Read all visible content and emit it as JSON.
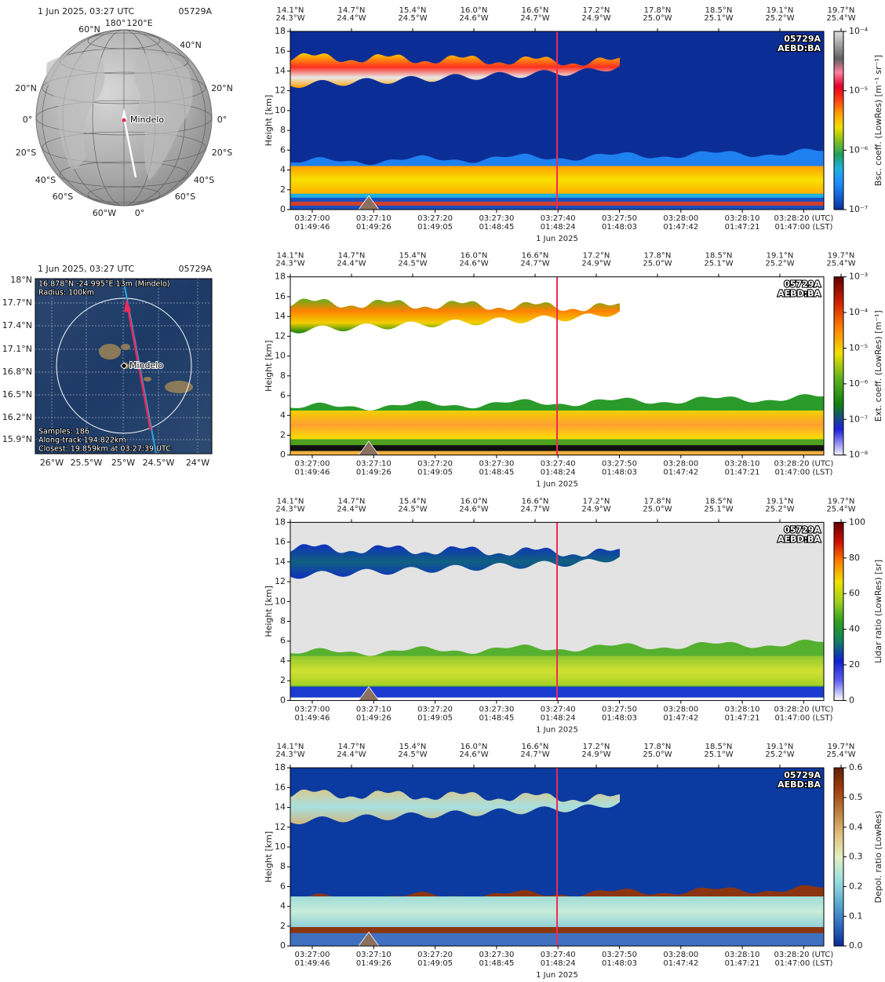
{
  "globe": {
    "time": "1 Jun 2025, 03:27 UTC",
    "id": "05729A",
    "site": "Mindelo",
    "grid_labels": [
      "180°",
      "120°E",
      "60°N",
      "40°N",
      "20°N",
      "20°N",
      "0°",
      "0°",
      "20°S",
      "20°S",
      "40°S",
      "40°S",
      "60°S",
      "60°S",
      "60°W",
      "0°"
    ]
  },
  "map": {
    "time": "1 Jun 2025, 03:27 UTC",
    "id": "05729A",
    "site": "Mindelo",
    "info_top": [
      "16.878°N -24.995°E 13m (Mindelo)",
      "Radius: 100km"
    ],
    "info_bottom": [
      "Samples: 186",
      "Along-track 194.822km",
      "Closest: 19.859km at 03:27:39 UTC"
    ],
    "lat_labels": [
      "18°N",
      "17.7°N",
      "17.4°N",
      "17.1°N",
      "16.8°N",
      "16.5°N",
      "16.2°N",
      "15.9°N"
    ],
    "lon_labels": [
      "26°W",
      "25.5°W",
      "25°W",
      "24.5°W",
      "24°W"
    ]
  },
  "chart_data": [
    {
      "type": "heatmap",
      "ylabel": "Height [km]",
      "ylim": [
        0,
        18
      ],
      "yticks": [
        0,
        2,
        4,
        6,
        8,
        10,
        12,
        14,
        16,
        18
      ],
      "background": "#0b2e96",
      "top_ticks": [
        {
          "lat": "14.1°N",
          "lon": "24.3°W"
        },
        {
          "lat": "14.7°N",
          "lon": "24.4°W"
        },
        {
          "lat": "15.4°N",
          "lon": "24.5°W"
        },
        {
          "lat": "16.0°N",
          "lon": "24.6°W"
        },
        {
          "lat": "16.6°N",
          "lon": "24.7°W"
        },
        {
          "lat": "17.2°N",
          "lon": "24.9°W"
        },
        {
          "lat": "17.8°N",
          "lon": "25.0°W"
        },
        {
          "lat": "18.5°N",
          "lon": "25.1°W"
        },
        {
          "lat": "19.1°N",
          "lon": "25.2°W"
        },
        {
          "lat": "19.7°N",
          "lon": "25.4°W"
        }
      ],
      "x_ticks": [
        {
          "utc": "03:27:00",
          "lst": "01:49:46"
        },
        {
          "utc": "03:27:10",
          "lst": "01:49:26"
        },
        {
          "utc": "03:27:20",
          "lst": "01:49:05"
        },
        {
          "utc": "03:27:30",
          "lst": "01:48:45"
        },
        {
          "utc": "03:27:40",
          "lst": "01:48:24"
        },
        {
          "utc": "03:27:50",
          "lst": "01:48:03"
        },
        {
          "utc": "03:28:00",
          "lst": "01:47:42"
        },
        {
          "utc": "03:28:10",
          "lst": "01:47:21"
        },
        {
          "utc": "03:28:20 (UTC)",
          "lst": "01:47:00 (LST)"
        }
      ],
      "date": "1 Jun 2025",
      "annotation": [
        "05729A",
        "AEBD:BA"
      ],
      "colorbar": {
        "label": "Bsc. coeff. (LowRes) [m⁻¹ sr⁻¹]",
        "log": true,
        "clim": [
          1e-07,
          0.0001
        ],
        "ticks": [
          {
            "value": 1e-07,
            "label": "10⁻⁷"
          },
          {
            "value": 1e-06,
            "label": "10⁻⁶"
          },
          {
            "value": 1e-05,
            "label": "10⁻⁵"
          },
          {
            "value": 0.0001,
            "label": "10⁻⁴"
          }
        ],
        "colors": [
          "#0b2e96",
          "#1464d2",
          "#1e90ff",
          "#20b0e0",
          "#1ca060",
          "#80c020",
          "#f0e000",
          "#ffa000",
          "#ff4010",
          "#e0002a",
          "#ff80a0",
          "#606060",
          "#a0a0a0",
          "#e0e0e0"
        ]
      }
    },
    {
      "type": "heatmap",
      "ylabel": "Height [km]",
      "ylim": [
        0,
        18
      ],
      "yticks": [
        0,
        2,
        4,
        6,
        8,
        10,
        12,
        14,
        16,
        18
      ],
      "background": "#ffffff",
      "top_ticks": [
        {
          "lat": "14.1°N",
          "lon": "24.3°W"
        },
        {
          "lat": "14.7°N",
          "lon": "24.4°W"
        },
        {
          "lat": "15.4°N",
          "lon": "24.5°W"
        },
        {
          "lat": "16.0°N",
          "lon": "24.6°W"
        },
        {
          "lat": "16.6°N",
          "lon": "24.7°W"
        },
        {
          "lat": "17.2°N",
          "lon": "24.9°W"
        },
        {
          "lat": "17.8°N",
          "lon": "25.0°W"
        },
        {
          "lat": "18.5°N",
          "lon": "25.1°W"
        },
        {
          "lat": "19.1°N",
          "lon": "25.2°W"
        },
        {
          "lat": "19.7°N",
          "lon": "25.4°W"
        }
      ],
      "x_ticks": [
        {
          "utc": "03:27:00",
          "lst": "01:49:46"
        },
        {
          "utc": "03:27:10",
          "lst": "01:49:26"
        },
        {
          "utc": "03:27:20",
          "lst": "01:49:05"
        },
        {
          "utc": "03:27:30",
          "lst": "01:48:45"
        },
        {
          "utc": "03:27:40",
          "lst": "01:48:24"
        },
        {
          "utc": "03:27:50",
          "lst": "01:48:03"
        },
        {
          "utc": "03:28:00",
          "lst": "01:47:42"
        },
        {
          "utc": "03:28:10",
          "lst": "01:47:21"
        },
        {
          "utc": "03:28:20 (UTC)",
          "lst": "01:47:00 (LST)"
        }
      ],
      "date": "1 Jun 2025",
      "annotation": [
        "05729A",
        "AEBD:BA"
      ],
      "colorbar": {
        "label": "Ext. coeff. (LowRes) [m⁻¹]",
        "log": true,
        "clim": [
          1e-08,
          0.001
        ],
        "ticks": [
          {
            "value": 1e-08,
            "label": "10⁻⁸"
          },
          {
            "value": 1e-07,
            "label": "10⁻⁷"
          },
          {
            "value": 1e-06,
            "label": "10⁻⁶"
          },
          {
            "value": 1e-05,
            "label": "10⁻⁵"
          },
          {
            "value": 0.0001,
            "label": "10⁻⁴"
          },
          {
            "value": 0.001,
            "label": "10⁻³"
          }
        ],
        "colors": [
          "#f0f0ff",
          "#2020e0",
          "#108010",
          "#60b020",
          "#f0e000",
          "#ff8000",
          "#d02000",
          "#600000"
        ]
      }
    },
    {
      "type": "heatmap",
      "ylabel": "Height [km]",
      "ylim": [
        0,
        18
      ],
      "yticks": [
        0,
        2,
        4,
        6,
        8,
        10,
        12,
        14,
        16,
        18
      ],
      "background": "#e3e3e3",
      "top_ticks": [
        {
          "lat": "14.1°N",
          "lon": "24.3°W"
        },
        {
          "lat": "14.7°N",
          "lon": "24.4°W"
        },
        {
          "lat": "15.4°N",
          "lon": "24.5°W"
        },
        {
          "lat": "16.0°N",
          "lon": "24.6°W"
        },
        {
          "lat": "16.6°N",
          "lon": "24.7°W"
        },
        {
          "lat": "17.2°N",
          "lon": "24.9°W"
        },
        {
          "lat": "17.8°N",
          "lon": "25.0°W"
        },
        {
          "lat": "18.5°N",
          "lon": "25.1°W"
        },
        {
          "lat": "19.1°N",
          "lon": "25.2°W"
        },
        {
          "lat": "19.7°N",
          "lon": "25.4°W"
        }
      ],
      "x_ticks": [
        {
          "utc": "03:27:00",
          "lst": "01:49:46"
        },
        {
          "utc": "03:27:10",
          "lst": "01:49:26"
        },
        {
          "utc": "03:27:20",
          "lst": "01:49:05"
        },
        {
          "utc": "03:27:30",
          "lst": "01:48:45"
        },
        {
          "utc": "03:27:40",
          "lst": "01:48:24"
        },
        {
          "utc": "03:27:50",
          "lst": "01:48:03"
        },
        {
          "utc": "03:28:00",
          "lst": "01:47:42"
        },
        {
          "utc": "03:28:10",
          "lst": "01:47:21"
        },
        {
          "utc": "03:28:20 (UTC)",
          "lst": "01:47:00 (LST)"
        }
      ],
      "date": "1 Jun 2025",
      "annotation": [
        "05729A",
        "AEBD:BA"
      ],
      "colorbar": {
        "label": "Lidar ratio (LowRes) [sr]",
        "log": false,
        "clim": [
          0,
          100
        ],
        "ticks": [
          0,
          20,
          40,
          60,
          80,
          100
        ],
        "colors": [
          "#ffffff",
          "#6060f0",
          "#1020d0",
          "#108060",
          "#30a020",
          "#a0d020",
          "#f0e000",
          "#ff8000",
          "#d01000",
          "#600000"
        ]
      }
    },
    {
      "type": "heatmap",
      "ylabel": "Height [km]",
      "ylim": [
        0,
        18
      ],
      "yticks": [
        0,
        2,
        4,
        6,
        8,
        10,
        12,
        14,
        16,
        18
      ],
      "background": "#0b3aa0",
      "top_ticks": [
        {
          "lat": "14.1°N",
          "lon": "24.3°W"
        },
        {
          "lat": "14.7°N",
          "lon": "24.4°W"
        },
        {
          "lat": "15.4°N",
          "lon": "24.5°W"
        },
        {
          "lat": "16.0°N",
          "lon": "24.6°W"
        },
        {
          "lat": "16.6°N",
          "lon": "24.7°W"
        },
        {
          "lat": "17.2°N",
          "lon": "24.9°W"
        },
        {
          "lat": "17.8°N",
          "lon": "25.0°W"
        },
        {
          "lat": "18.5°N",
          "lon": "25.1°W"
        },
        {
          "lat": "19.1°N",
          "lon": "25.2°W"
        },
        {
          "lat": "19.7°N",
          "lon": "25.4°W"
        }
      ],
      "x_ticks": [
        {
          "utc": "03:27:00",
          "lst": "01:49:46"
        },
        {
          "utc": "03:27:10",
          "lst": "01:49:26"
        },
        {
          "utc": "03:27:20",
          "lst": "01:49:05"
        },
        {
          "utc": "03:27:30",
          "lst": "01:48:45"
        },
        {
          "utc": "03:27:40",
          "lst": "01:48:24"
        },
        {
          "utc": "03:27:50",
          "lst": "01:48:03"
        },
        {
          "utc": "03:28:00",
          "lst": "01:47:42"
        },
        {
          "utc": "03:28:10",
          "lst": "01:47:21"
        },
        {
          "utc": "03:28:20 (UTC)",
          "lst": "01:47:00 (LST)"
        }
      ],
      "date": "1 Jun 2025",
      "annotation": [
        "05729A",
        "AEBD:BA"
      ],
      "colorbar": {
        "label": "Depol. ratio (LowRes)",
        "log": false,
        "clim": [
          0,
          0.6
        ],
        "ticks": [
          {
            "value": 0,
            "label": "0.0"
          },
          0.1,
          0.2,
          0.3,
          0.4,
          0.5,
          0.6
        ],
        "colors": [
          "#0a2a9a",
          "#3070c0",
          "#60b0d0",
          "#a0e0e0",
          "#e0f0c0",
          "#e0c080",
          "#c08040",
          "#a04010",
          "#602000"
        ]
      }
    }
  ]
}
